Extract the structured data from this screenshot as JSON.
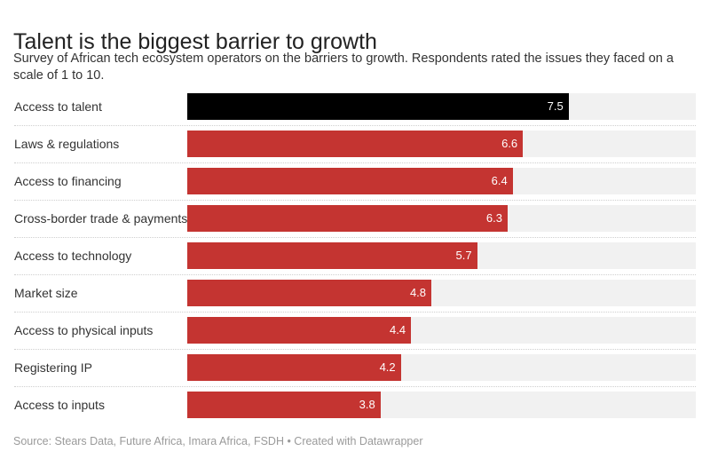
{
  "header": {
    "title": "Talent is the biggest barrier to growth",
    "subtitle": "Survey of African tech ecosystem operators on the barriers to growth. Respondents rated the issues they faced on a scale of 1 to 10."
  },
  "footer": {
    "source": "Source: Stears Data, Future Africa, Imara Africa, FSDH • Created with Datawrapper"
  },
  "chart_data": {
    "type": "bar",
    "orientation": "horizontal",
    "categories": [
      "Access to talent",
      "Laws & regulations",
      "Access to financing",
      "Cross-border trade & payments",
      "Access to technology",
      "Market size",
      "Access to physical inputs",
      "Registering IP",
      "Access to inputs"
    ],
    "values": [
      7.5,
      6.6,
      6.4,
      6.3,
      5.7,
      4.8,
      4.4,
      4.2,
      3.8
    ],
    "value_labels": [
      "7.5",
      "6.6",
      "6.4",
      "6.3",
      "5.7",
      "4.8",
      "4.4",
      "4.2",
      "3.8"
    ],
    "xlim": [
      0,
      10
    ],
    "highlight_index": 0,
    "colors": {
      "highlight": "#000000",
      "bar": "#c43431",
      "track": "#f1f1f1",
      "value_text": "#ffffff"
    },
    "grid": false,
    "legend": "none"
  }
}
